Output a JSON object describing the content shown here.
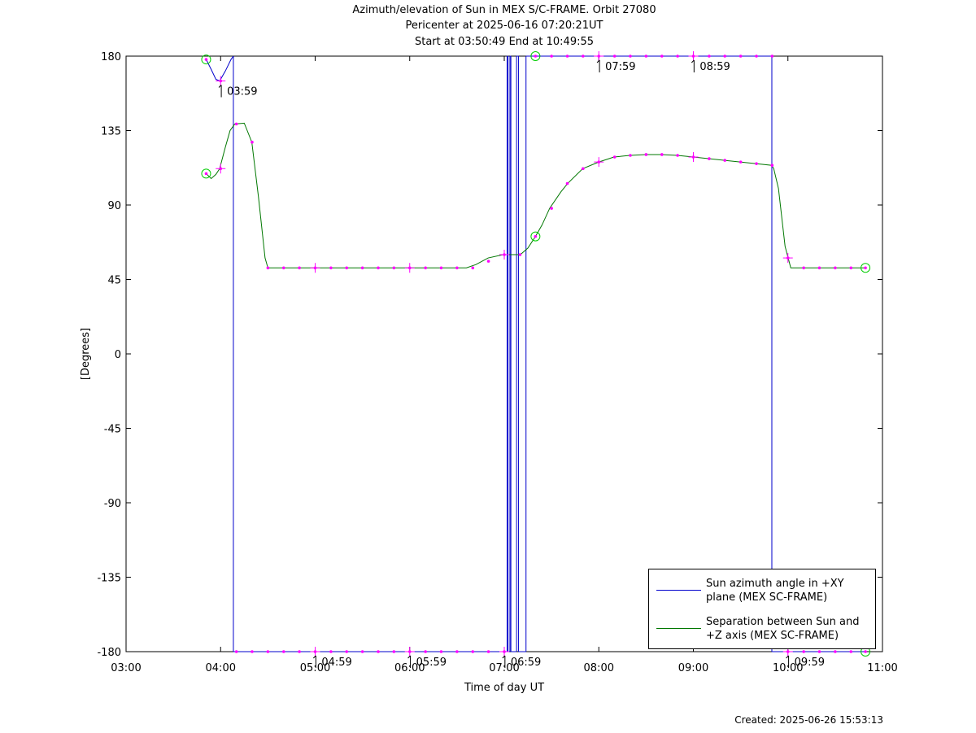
{
  "title_lines": [
    "Azimuth/elevation of Sun in MEX S/C-FRAME.  Orbit 27080",
    "Pericenter at 2025-06-16 07:20:21UT",
    "Start at 03:50:49 End at 10:49:55"
  ],
  "created": "Created: 2025-06-26 15:53:13",
  "colors": {
    "azimuth": "#0000cc",
    "separation": "#007700",
    "marker": "#ff00ff",
    "endpoint": "#00cc00"
  },
  "chart_data": {
    "type": "line",
    "xlabel": "Time of day UT",
    "ylabel": "[Degrees]",
    "xlim": [
      3.0,
      11.0
    ],
    "ylim": [
      -180,
      180
    ],
    "x_tick_values": [
      3,
      4,
      5,
      6,
      7,
      8,
      9,
      10,
      11
    ],
    "x_tick_labels": [
      "03:00",
      "04:00",
      "05:00",
      "06:00",
      "07:00",
      "08:00",
      "09:00",
      "10:00",
      "11:00"
    ],
    "y_tick_values": [
      180,
      135,
      90,
      45,
      0,
      -45,
      -90,
      -135,
      -180
    ],
    "y_tick_labels": [
      "180",
      "135",
      "90",
      "45",
      "0",
      "-45",
      "-90",
      "-135",
      "-180"
    ],
    "grid": false,
    "legend_position": "bottom-right",
    "series": [
      {
        "name": "Sun azimuth angle in +XY plane (MEX SC-FRAME)",
        "segments": [
          [
            [
              3.847,
              178
            ],
            [
              3.9,
              172
            ],
            [
              3.95,
              166
            ],
            [
              3.99,
              165
            ],
            [
              4.05,
              171
            ],
            [
              4.11,
              178
            ],
            [
              4.135,
              180
            ]
          ],
          [
            [
              4.135,
              -180
            ],
            [
              5.0,
              -180
            ],
            [
              6.0,
              -180
            ],
            [
              7.02,
              -180
            ],
            [
              7.03,
              -180
            ]
          ],
          [
            [
              7.03,
              180
            ],
            [
              7.04,
              180
            ]
          ],
          [
            [
              7.04,
              -180
            ],
            [
              7.06,
              -180
            ]
          ],
          [
            [
              7.06,
              180
            ],
            [
              7.07,
              180
            ]
          ],
          [
            [
              7.07,
              -180
            ],
            [
              7.12,
              -180
            ],
            [
              7.13,
              -180
            ]
          ],
          [
            [
              7.13,
              180
            ],
            [
              7.15,
              180
            ]
          ],
          [
            [
              7.15,
              -180
            ],
            [
              7.22,
              -180
            ],
            [
              7.23,
              -180
            ]
          ],
          [
            [
              7.23,
              180
            ],
            [
              8.0,
              180
            ],
            [
              9.0,
              180
            ],
            [
              9.83,
              180
            ]
          ],
          [
            [
              9.83,
              -180
            ],
            [
              10.0,
              -180
            ],
            [
              10.82,
              -180
            ]
          ]
        ]
      },
      {
        "name": "Separation between Sun and +Z axis (MEX SC-FRAME)",
        "points": [
          [
            3.847,
            109
          ],
          [
            3.9,
            106
          ],
          [
            3.95,
            108.5
          ],
          [
            3.99,
            112
          ],
          [
            4.05,
            125
          ],
          [
            4.1,
            135
          ],
          [
            4.15,
            139
          ],
          [
            4.25,
            139.5
          ],
          [
            4.33,
            128
          ],
          [
            4.4,
            95
          ],
          [
            4.47,
            58
          ],
          [
            4.5,
            52
          ],
          [
            5.0,
            52
          ],
          [
            6.0,
            52
          ],
          [
            6.6,
            52
          ],
          [
            6.7,
            54
          ],
          [
            6.83,
            58
          ],
          [
            6.99,
            60
          ],
          [
            7.03,
            60
          ],
          [
            7.17,
            60
          ],
          [
            7.25,
            64
          ],
          [
            7.33,
            71
          ],
          [
            7.4,
            78
          ],
          [
            7.48,
            88
          ],
          [
            7.6,
            98
          ],
          [
            7.67,
            103
          ],
          [
            7.83,
            112
          ],
          [
            8.0,
            116
          ],
          [
            8.16,
            119
          ],
          [
            8.33,
            120
          ],
          [
            8.5,
            120.5
          ],
          [
            8.66,
            120.5
          ],
          [
            8.83,
            120
          ],
          [
            9.0,
            119
          ],
          [
            9.33,
            117
          ],
          [
            9.66,
            115
          ],
          [
            9.83,
            114
          ],
          [
            9.85,
            112
          ],
          [
            9.9,
            100
          ],
          [
            9.97,
            65
          ],
          [
            10.03,
            52
          ],
          [
            10.5,
            52
          ],
          [
            10.82,
            52
          ]
        ]
      }
    ],
    "azimuth_markers": [
      [
        3.847,
        178
      ],
      [
        4.0,
        165
      ],
      [
        4.833,
        -180
      ],
      [
        5.0,
        -180
      ],
      [
        5.167,
        -180
      ],
      [
        5.333,
        -180
      ],
      [
        5.5,
        -180
      ],
      [
        5.667,
        -180
      ],
      [
        5.833,
        -180
      ],
      [
        6.0,
        -180
      ],
      [
        6.167,
        -180
      ],
      [
        6.333,
        -180
      ],
      [
        6.5,
        -180
      ],
      [
        6.667,
        -180
      ],
      [
        6.833,
        -180
      ],
      [
        7.0,
        -180
      ],
      [
        7.33,
        180
      ],
      [
        7.5,
        180
      ],
      [
        7.667,
        180
      ],
      [
        7.833,
        180
      ],
      [
        8.0,
        180
      ],
      [
        8.167,
        180
      ],
      [
        8.333,
        180
      ],
      [
        8.5,
        180
      ],
      [
        8.667,
        180
      ],
      [
        8.833,
        180
      ],
      [
        9.0,
        180
      ],
      [
        9.167,
        180
      ],
      [
        9.333,
        180
      ],
      [
        9.5,
        180
      ],
      [
        9.667,
        180
      ],
      [
        9.833,
        180
      ],
      [
        10.0,
        -180
      ],
      [
        10.167,
        -180
      ],
      [
        10.333,
        -180
      ],
      [
        10.5,
        -180
      ],
      [
        10.667,
        -180
      ],
      [
        10.82,
        -180
      ],
      [
        4.167,
        -180
      ],
      [
        4.333,
        -180
      ],
      [
        4.5,
        -180
      ],
      [
        4.667,
        -180
      ]
    ],
    "separation_markers": [
      [
        3.847,
        109
      ],
      [
        4.0,
        112
      ],
      [
        4.167,
        139
      ],
      [
        4.333,
        128
      ],
      [
        4.5,
        52
      ],
      [
        4.667,
        52
      ],
      [
        4.833,
        52
      ],
      [
        5.0,
        52
      ],
      [
        5.167,
        52
      ],
      [
        5.333,
        52
      ],
      [
        5.5,
        52
      ],
      [
        5.667,
        52
      ],
      [
        5.833,
        52
      ],
      [
        6.0,
        52
      ],
      [
        6.167,
        52
      ],
      [
        6.333,
        52
      ],
      [
        6.5,
        52
      ],
      [
        6.667,
        52
      ],
      [
        6.833,
        56
      ],
      [
        7.0,
        60
      ],
      [
        7.167,
        60
      ],
      [
        7.33,
        71
      ],
      [
        7.5,
        88
      ],
      [
        7.667,
        103
      ],
      [
        7.833,
        112
      ],
      [
        8.0,
        116
      ],
      [
        8.167,
        119
      ],
      [
        8.333,
        120
      ],
      [
        8.5,
        120.5
      ],
      [
        8.667,
        120.5
      ],
      [
        8.833,
        120
      ],
      [
        9.0,
        119
      ],
      [
        9.167,
        118
      ],
      [
        9.333,
        117
      ],
      [
        9.5,
        116
      ],
      [
        9.667,
        115
      ],
      [
        9.833,
        114
      ],
      [
        10.0,
        58
      ],
      [
        10.167,
        52
      ],
      [
        10.333,
        52
      ],
      [
        10.5,
        52
      ],
      [
        10.667,
        52
      ],
      [
        10.82,
        52
      ]
    ],
    "hour_crosses": [
      [
        4.0,
        165
      ],
      [
        4.0,
        112
      ],
      [
        5.0,
        -180
      ],
      [
        5.0,
        52
      ],
      [
        6.0,
        -180
      ],
      [
        6.0,
        52
      ],
      [
        7.0,
        -180
      ],
      [
        7.0,
        60
      ],
      [
        8.0,
        180
      ],
      [
        8.0,
        116
      ],
      [
        9.0,
        180
      ],
      [
        9.0,
        119
      ],
      [
        10.0,
        -180
      ],
      [
        10.0,
        58
      ]
    ],
    "endpoint_circles": [
      [
        3.847,
        178
      ],
      [
        3.847,
        109
      ],
      [
        7.33,
        180
      ],
      [
        7.33,
        71
      ],
      [
        10.82,
        -180
      ],
      [
        10.82,
        52
      ]
    ],
    "time_annotations": [
      {
        "x": 3.99,
        "y": 165,
        "label": "03:59"
      },
      {
        "x": 4.99,
        "y": -180,
        "label": "04:59"
      },
      {
        "x": 5.99,
        "y": -180,
        "label": "05:59"
      },
      {
        "x": 6.99,
        "y": -180,
        "label": "06:59"
      },
      {
        "x": 7.99,
        "y": 180,
        "label": "07:59"
      },
      {
        "x": 8.99,
        "y": 180,
        "label": "08:59"
      },
      {
        "x": 9.99,
        "y": -180,
        "label": "09:59"
      }
    ]
  }
}
